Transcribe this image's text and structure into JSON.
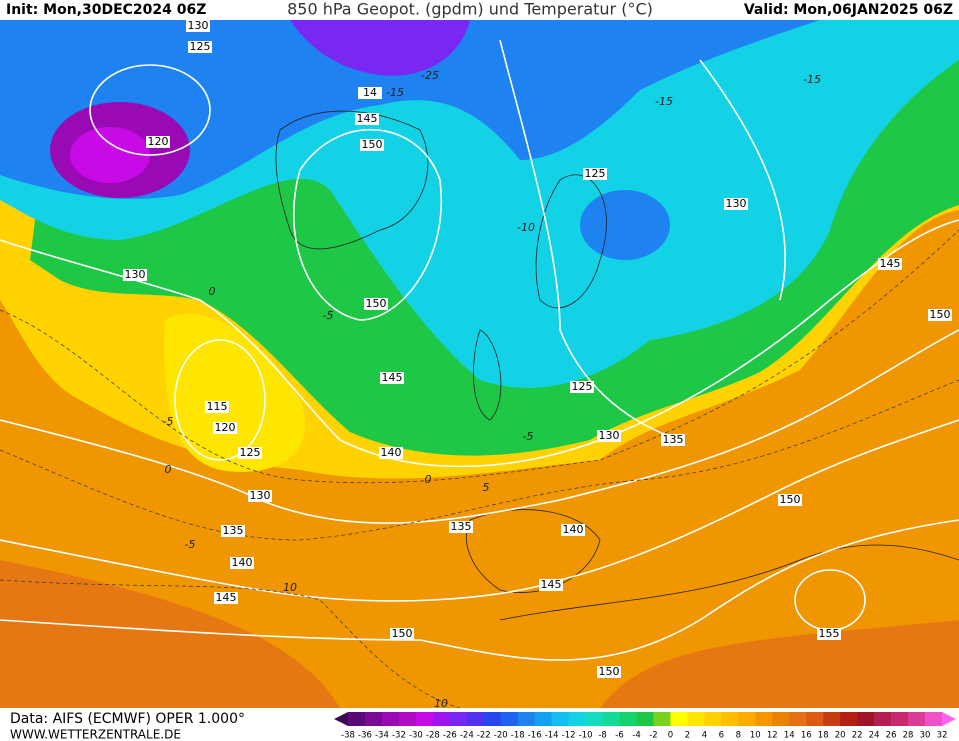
{
  "header": {
    "init": "Init: Mon,30DEC2024 06Z",
    "title": "850 hPa Geopot. (gpdm) und Temperatur (°C)",
    "valid": "Valid: Mon,06JAN2025 06Z"
  },
  "footer": {
    "source": "Data: AIFS (ECMWF) OPER 1.000°",
    "url": "WWW.WETTERZENTRALE.DE"
  },
  "color_scale": {
    "labels": [
      -38,
      -36,
      -34,
      -32,
      -30,
      -28,
      -26,
      -24,
      -22,
      -20,
      -18,
      -16,
      -14,
      -12,
      -10,
      -8,
      -6,
      -4,
      -2,
      0,
      2,
      4,
      6,
      8,
      10,
      12,
      14,
      16,
      18,
      20,
      22,
      24,
      26,
      28,
      30,
      32
    ],
    "colors": [
      "#3c0a50",
      "#5a0a78",
      "#7a0a96",
      "#9a0ab4",
      "#b40ac8",
      "#c80ae6",
      "#a014f0",
      "#7828f0",
      "#5032f0",
      "#2846f0",
      "#1e64f0",
      "#1e82f0",
      "#14a0f0",
      "#14bef0",
      "#14d2e6",
      "#14dcbe",
      "#14dc96",
      "#14d26e",
      "#1ec846",
      "#78d21e",
      "#ffff00",
      "#ffe600",
      "#ffd200",
      "#ffbe00",
      "#ffaa00",
      "#f59600",
      "#eb8200",
      "#e66e14",
      "#dc5a14",
      "#c83c14",
      "#b41e14",
      "#a01428",
      "#b41e50",
      "#c8286e",
      "#dc3c96",
      "#f050c8",
      "#ff64f0"
    ]
  },
  "geopotential_labels": [
    "130",
    "125",
    "120",
    "14",
    "145",
    "150",
    "130",
    "150",
    "145",
    "115",
    "120",
    "125",
    "130",
    "140",
    "135",
    "140",
    "145",
    "150",
    "135",
    "140",
    "145",
    "150",
    "125",
    "130",
    "125",
    "130",
    "135",
    "145",
    "150",
    "150",
    "155"
  ],
  "temperature_labels": [
    "-25",
    "-15",
    "-15",
    "-15",
    "-10",
    "-5",
    "-5",
    "0",
    "-5",
    "0",
    "0",
    "5",
    "-5",
    "10",
    "10"
  ]
}
